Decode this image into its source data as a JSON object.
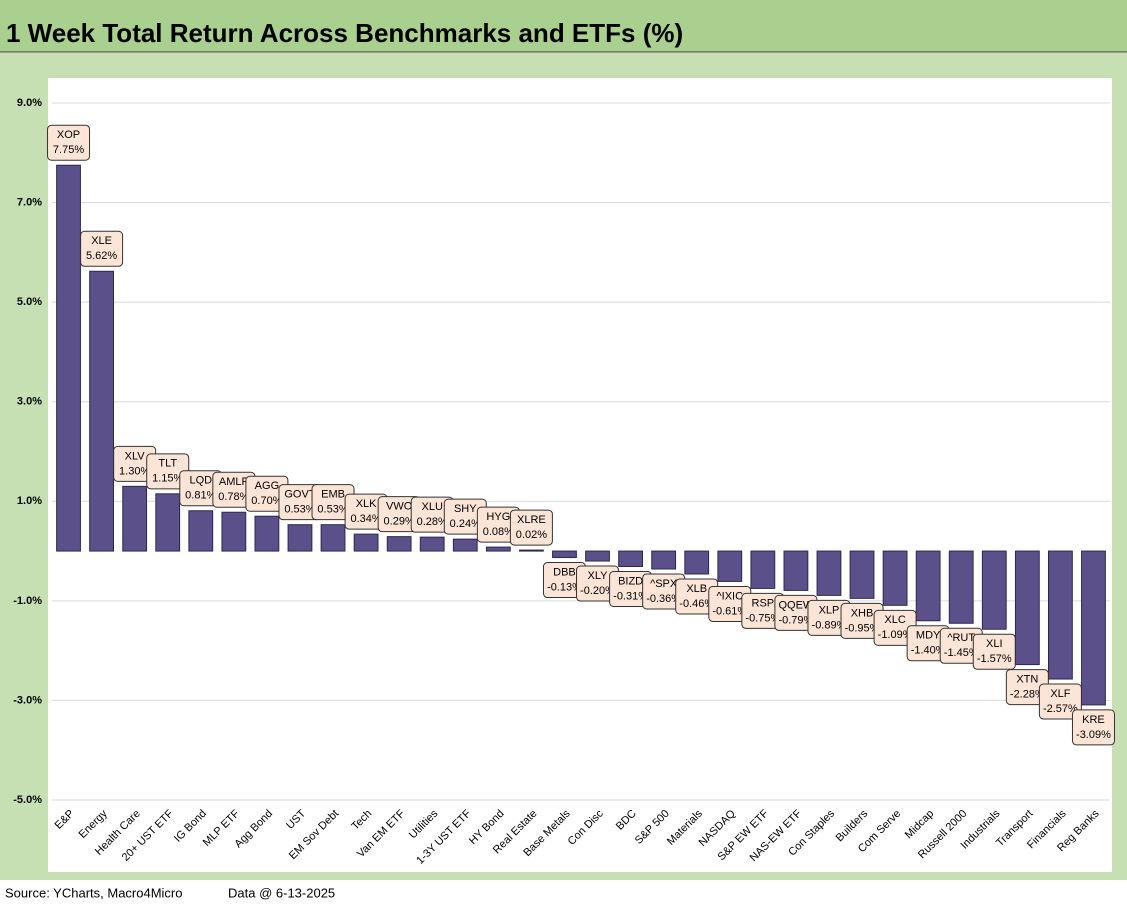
{
  "chart_data": {
    "type": "bar",
    "title": "1 Week Total Return Across Benchmarks and ETFs (%)",
    "categories": [
      "E&P",
      "Energy",
      "Health Care",
      "20+ UST ETF",
      "IG Bond",
      "MLP ETF",
      "Agg Bond",
      "UST",
      "EM Sov Debt",
      "Tech",
      "Van EM ETF",
      "Utilities",
      "1-3Y UST ETF",
      "HY Bond",
      "Real Estate",
      "Base Metals",
      "Con Disc",
      "BDC",
      "S&P 500",
      "Materials",
      "NASDAQ",
      "S&P EW ETF",
      "NAS-EW ETF",
      "Con Staples",
      "Builders",
      "Com Serve",
      "Midcap",
      "Russell 2000",
      "Industrials",
      "Transport",
      "Financials",
      "Reg Banks"
    ],
    "tickers": [
      "XOP",
      "XLE",
      "XLV",
      "TLT",
      "LQD",
      "AMLP",
      "AGG",
      "GOVT",
      "EMB",
      "XLK",
      "VWO",
      "XLU",
      "SHY",
      "HYG",
      "XLRE",
      "DBB",
      "XLY",
      "BIZD",
      "^SPX",
      "XLB",
      "^IXIC",
      "RSP",
      "QQEW",
      "XLP",
      "XHB",
      "XLC",
      "MDY",
      "^RUT",
      "XLI",
      "XTN",
      "XLF",
      "KRE"
    ],
    "values": [
      7.75,
      5.62,
      1.3,
      1.15,
      0.81,
      0.78,
      0.7,
      0.53,
      0.53,
      0.34,
      0.29,
      0.28,
      0.24,
      0.08,
      0.02,
      -0.13,
      -0.2,
      -0.31,
      -0.36,
      -0.46,
      -0.61,
      -0.75,
      -0.79,
      -0.89,
      -0.95,
      -1.09,
      -1.4,
      -1.45,
      -1.57,
      -2.28,
      -2.57,
      -3.09
    ],
    "value_labels": [
      "7.75%",
      "5.62%",
      "1.30%",
      "1.15%",
      "0.81%",
      "0.78%",
      "0.70%",
      "0.53%",
      "0.53%",
      "0.34%",
      "0.29%",
      "0.28%",
      "0.24%",
      "0.08%",
      "0.02%",
      "-0.13%",
      "-0.20%",
      "-0.31%",
      "-0.36%",
      "-0.46%",
      "-0.61%",
      "-0.75%",
      "-0.79%",
      "-0.89%",
      "-0.95%",
      "-1.09%",
      "-1.40%",
      "-1.45%",
      "-1.57%",
      "-2.28%",
      "-2.57%",
      "-3.09%"
    ],
    "color": "#5b5089",
    "ylim": [
      -5,
      9
    ],
    "yticks": [
      {
        "value": -5,
        "label": "-5.0%"
      },
      {
        "value": -3,
        "label": "-3.0%"
      },
      {
        "value": -1,
        "label": "-1.0%"
      },
      {
        "value": 1,
        "label": "1.0%"
      },
      {
        "value": 3,
        "label": "3.0%"
      },
      {
        "value": 5,
        "label": "5.0%"
      },
      {
        "value": 7,
        "label": "7.0%"
      },
      {
        "value": 9,
        "label": "9.0%"
      }
    ],
    "grid": true,
    "source": "Source: YCharts, Macro4Micro",
    "data_note": "Data @ 6-13-2025"
  }
}
